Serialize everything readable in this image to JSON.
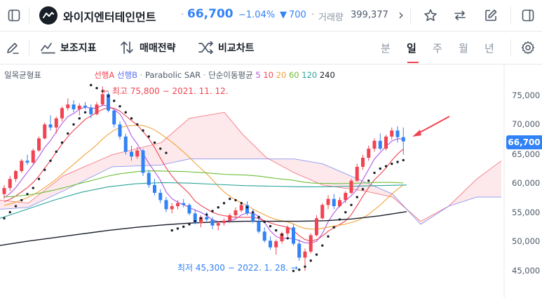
{
  "header": {
    "stock_name": "와이지엔터테인먼트",
    "dot": "·",
    "price": "66,700",
    "change_pct": "−1.04%",
    "change_arrow": "▼",
    "change_abs": "700",
    "dot2": "·",
    "volume_label": "거래량",
    "volume_value": "399,377",
    "more": "›"
  },
  "toolbar": {
    "indicators_label": "보조지표",
    "strategy_label": "매매전략",
    "compare_label": "비교차트",
    "periods": [
      "분",
      "일",
      "주",
      "월",
      "년"
    ],
    "active_period": "일"
  },
  "legend": {
    "ichimoku": "일목균형표",
    "span_a": "선행A",
    "span_b": "선행B",
    "dot1": "·",
    "sar": "Parabolic SAR",
    "dot2": "·",
    "ma_label": "단순이동평균",
    "ma": [
      {
        "p": "5",
        "color": "#b455e0"
      },
      {
        "p": "10",
        "color": "#f04452"
      },
      {
        "p": "20",
        "color": "#f2a33a"
      },
      {
        "p": "60",
        "color": "#6cbf3a"
      },
      {
        "p": "120",
        "color": "#2ba39a"
      },
      {
        "p": "240",
        "color": "#191f28"
      }
    ]
  },
  "annotations": {
    "high": "최고 75,800 − 2021. 11. 12.",
    "low": "최저 45,300 − 2022. 1. 28."
  },
  "y_axis": [
    "75,000",
    "70,000",
    "65,000",
    "60,000",
    "55,000",
    "50,000",
    "45,000"
  ],
  "current_price_tag": "66,700",
  "colors": {
    "up": "#f04452",
    "down": "#3182f6",
    "accent": "#3182f6"
  },
  "chart_data": {
    "type": "candlestick",
    "ylim": [
      41000,
      79000
    ],
    "ohlc": [
      [
        58000,
        59500,
        57200,
        59000
      ],
      [
        59000,
        61000,
        58500,
        60500
      ],
      [
        60500,
        62000,
        60000,
        61800
      ],
      [
        61800,
        63800,
        61500,
        63500
      ],
      [
        63500,
        64500,
        62800,
        63200
      ],
      [
        63200,
        65500,
        63000,
        65200
      ],
      [
        65200,
        67500,
        65000,
        67200
      ],
      [
        67200,
        69800,
        67000,
        69500
      ],
      [
        69500,
        71000,
        68500,
        69000
      ],
      [
        69000,
        70800,
        68000,
        70500
      ],
      [
        70500,
        72500,
        70000,
        72200
      ],
      [
        72200,
        73800,
        71800,
        72800
      ],
      [
        72800,
        73500,
        71500,
        72000
      ],
      [
        72000,
        73000,
        71000,
        72600
      ],
      [
        72600,
        73200,
        72000,
        72300
      ],
      [
        72300,
        72800,
        70500,
        71200
      ],
      [
        71200,
        73200,
        71000,
        72800
      ],
      [
        72800,
        75800,
        72500,
        74500
      ],
      [
        74500,
        74800,
        71500,
        71800
      ],
      [
        71800,
        72000,
        69000,
        69500
      ],
      [
        69500,
        70000,
        67000,
        67500
      ],
      [
        67500,
        68000,
        64500,
        65000
      ],
      [
        65000,
        66000,
        63500,
        64200
      ],
      [
        64200,
        65800,
        63800,
        65200
      ],
      [
        65200,
        65500,
        61000,
        61500
      ],
      [
        61500,
        62000,
        59000,
        59500
      ],
      [
        59500,
        60500,
        57800,
        58200
      ],
      [
        58200,
        58800,
        56500,
        57000
      ],
      [
        57000,
        57500,
        55000,
        55500
      ],
      [
        55500,
        56500,
        54800,
        56000
      ],
      [
        56000,
        57000,
        55500,
        56500
      ],
      [
        56500,
        57200,
        55800,
        56200
      ],
      [
        56200,
        56500,
        54500,
        54800
      ],
      [
        54800,
        55500,
        53000,
        53200
      ],
      [
        53200,
        54500,
        52500,
        54200
      ],
      [
        54200,
        55000,
        53500,
        53800
      ],
      [
        53800,
        54200,
        52200,
        52800
      ],
      [
        52800,
        53500,
        52000,
        53200
      ],
      [
        53200,
        54000,
        52800,
        53600
      ],
      [
        53600,
        54800,
        53200,
        54500
      ],
      [
        54500,
        55800,
        54000,
        55300
      ],
      [
        55300,
        56500,
        55000,
        56200
      ],
      [
        56200,
        56800,
        54500,
        54800
      ],
      [
        54800,
        55500,
        53200,
        53500
      ],
      [
        53500,
        54000,
        51500,
        51800
      ],
      [
        51800,
        52500,
        50000,
        50300
      ],
      [
        50300,
        51000,
        48800,
        49200
      ],
      [
        49200,
        50500,
        48000,
        50200
      ],
      [
        50200,
        51800,
        49800,
        51500
      ],
      [
        51500,
        52800,
        51000,
        52500
      ],
      [
        52500,
        53000,
        49500,
        49800
      ],
      [
        49800,
        50500,
        47000,
        47500
      ],
      [
        47500,
        49000,
        45300,
        48500
      ],
      [
        48500,
        51500,
        48200,
        51200
      ],
      [
        51200,
        54500,
        51000,
        54000
      ],
      [
        54000,
        56500,
        53800,
        56200
      ],
      [
        56200,
        57800,
        55500,
        57200
      ],
      [
        57200,
        58000,
        55500,
        56000
      ],
      [
        56000,
        57500,
        55800,
        57000
      ],
      [
        57000,
        58500,
        56500,
        58200
      ],
      [
        58200,
        60500,
        58000,
        60200
      ],
      [
        60200,
        63000,
        60000,
        62500
      ],
      [
        62500,
        64500,
        62000,
        64000
      ],
      [
        64000,
        66000,
        63500,
        65500
      ],
      [
        65500,
        67200,
        65000,
        66800
      ],
      [
        66800,
        68000,
        65200,
        65500
      ],
      [
        65500,
        67800,
        65200,
        67500
      ],
      [
        67500,
        69000,
        67000,
        68500
      ],
      [
        68500,
        69200,
        66500,
        67400
      ],
      [
        67400,
        69000,
        64500,
        66700
      ]
    ]
  }
}
